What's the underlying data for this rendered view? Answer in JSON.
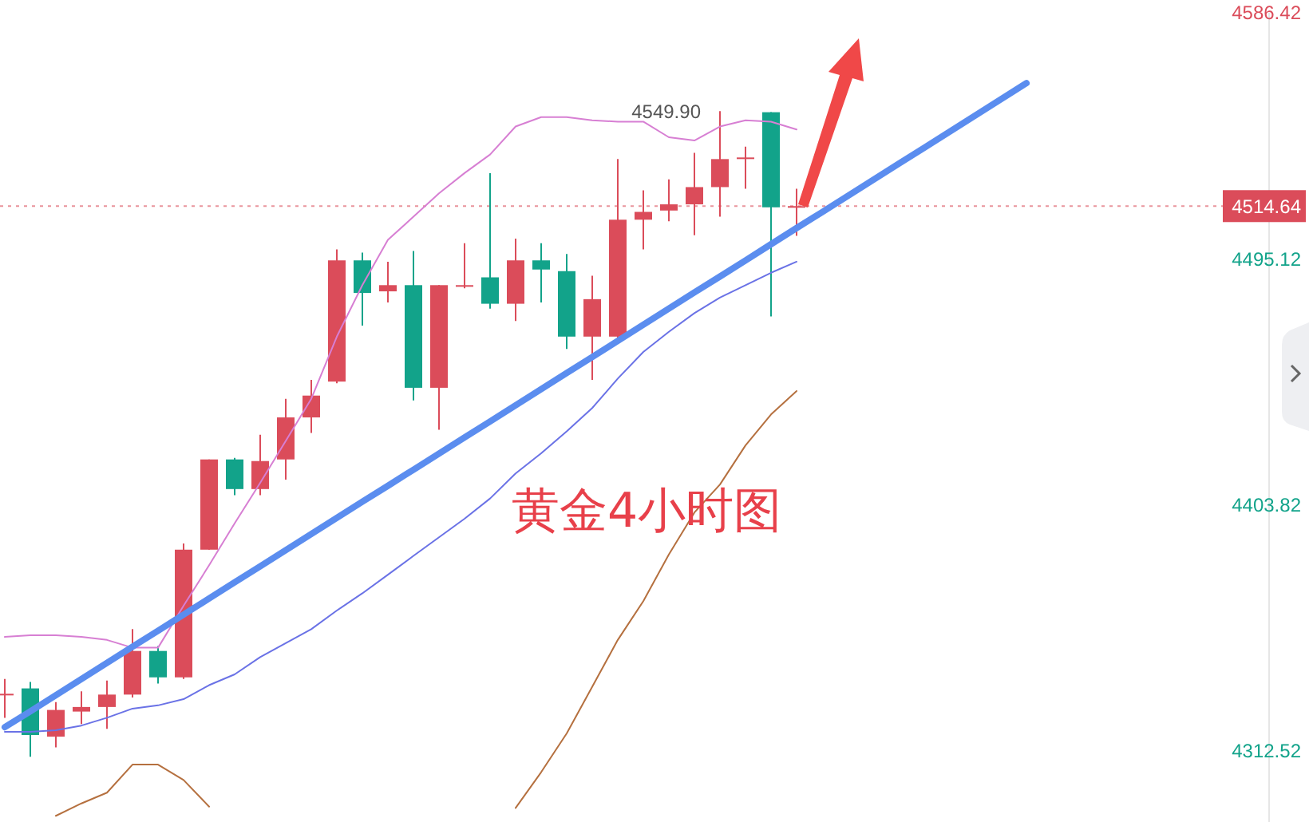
{
  "chart_data": {
    "type": "candlestick",
    "categories": [
      null,
      null,
      null,
      null,
      null,
      null,
      null,
      null,
      null,
      null,
      null,
      null,
      null,
      null,
      null,
      null,
      null,
      null,
      null,
      null,
      null,
      null,
      null,
      null,
      null,
      null,
      null,
      null,
      null,
      null,
      null,
      null,
      null,
      null,
      null,
      null,
      null,
      null,
      null,
      null,
      null
    ],
    "ohlc": [
      [
        4333.3,
        4339.1,
        4324.7,
        4333.6
      ],
      [
        4335.6,
        4338.0,
        4310.2,
        4318.3
      ],
      [
        4317.7,
        4330.5,
        4313.7,
        4327.6
      ],
      [
        4327.0,
        4334.5,
        4322.4,
        4328.7
      ],
      [
        4328.7,
        4338.5,
        4320.6,
        4333.3
      ],
      [
        4333.3,
        4357.6,
        4332.2,
        4349.5
      ],
      [
        4349.5,
        4351.3,
        4337.4,
        4339.7
      ],
      [
        4339.7,
        4389.4,
        4339.1,
        4387.1
      ],
      [
        4387.1,
        4420.6,
        4387.1,
        4420.6
      ],
      [
        4420.6,
        4421.2,
        4407.3,
        4409.6
      ],
      [
        4409.6,
        4429.8,
        4407.3,
        4420.0
      ],
      [
        4420.6,
        4443.1,
        4413.1,
        4436.2
      ],
      [
        4436.2,
        4450.1,
        4430.4,
        4444.3
      ],
      [
        4449.5,
        4498.6,
        4448.9,
        4494.5
      ],
      [
        4494.5,
        4497.4,
        4470.3,
        4482.4
      ],
      [
        4483.0,
        4494.0,
        4478.9,
        4485.3
      ],
      [
        4485.3,
        4498.0,
        4442.5,
        4447.2
      ],
      [
        4447.2,
        4485.3,
        4431.6,
        4485.3
      ],
      [
        4484.8,
        4500.9,
        4484.1,
        4485.3
      ],
      [
        4488.2,
        4526.9,
        4476.6,
        4478.4
      ],
      [
        4478.4,
        4502.6,
        4472.0,
        4494.5
      ],
      [
        4494.5,
        4500.9,
        4478.9,
        4491.1
      ],
      [
        4490.5,
        4496.9,
        4461.6,
        4466.2
      ],
      [
        4466.2,
        4488.8,
        4450.1,
        4480.1
      ],
      [
        4466.2,
        4532.1,
        4465.7,
        4509.6
      ],
      [
        4509.6,
        4520.5,
        4498.6,
        4512.5
      ],
      [
        4513.0,
        4524.6,
        4509.0,
        4515.3
      ],
      [
        4515.3,
        4534.4,
        4503.8,
        4521.7
      ],
      [
        4521.7,
        4549.9,
        4510.7,
        4532.1
      ],
      [
        4532.4,
        4536.7,
        4521.1,
        4532.7
      ],
      [
        4549.5,
        4549.5,
        4473.7,
        4514.2
      ],
      [
        4514.2,
        4521.1,
        4503.6,
        4514.64
      ],
      null,
      null,
      null,
      null,
      null,
      null,
      null,
      null,
      null
    ],
    "colors": [
      "#db4c5a",
      "#12a38a",
      "#db4c5a",
      "#db4c5a",
      "#db4c5a",
      "#db4c5a",
      "#12a38a",
      "#db4c5a",
      "#db4c5a",
      "#12a38a",
      "#db4c5a",
      "#db4c5a",
      "#db4c5a",
      "#db4c5a",
      "#12a38a",
      "#db4c5a",
      "#12a38a",
      "#db4c5a",
      "#db4c5a",
      "#12a38a",
      "#db4c5a",
      "#12a38a",
      "#12a38a",
      "#db4c5a",
      "#db4c5a",
      "#db4c5a",
      "#db4c5a",
      "#db4c5a",
      "#db4c5a",
      "#db4c5a",
      "#12a38a",
      "#db4c5a",
      null,
      null,
      null,
      null,
      null,
      null,
      null,
      null,
      null
    ],
    "series": [
      {
        "type": "line",
        "color": "#d77fd3",
        "values": [
          4354.7,
          4355.3,
          4355.3,
          4354.7,
          4353.6,
          4350.7,
          4350.7,
          4366.3,
          4381.3,
          4396.9,
          4411.9,
          4427.5,
          4443.1,
          4466.2,
          4485.3,
          4502.1,
          4510.7,
          4519.4,
          4526.9,
          4533.8,
          4544.2,
          4547.7,
          4547.7,
          4546.5,
          4546.0,
          4546.0,
          4540.2,
          4539.0,
          4544.2,
          4546.5,
          4546.0,
          4543.1,
          null,
          null,
          null,
          null,
          null,
          null,
          null,
          null,
          null
        ]
      },
      {
        "type": "line",
        "color": "#6a72e6",
        "values": [
          4319.5,
          4319.5,
          4320.1,
          4321.8,
          4324.7,
          4328.1,
          4329.3,
          4331.6,
          4336.8,
          4340.8,
          4347.2,
          4352.4,
          4357.6,
          4364.5,
          4370.9,
          4377.8,
          4384.8,
          4391.7,
          4398.6,
          4406.1,
          4415.4,
          4422.9,
          4431.0,
          4439.7,
          4450.6,
          4460.5,
          4468.0,
          4474.9,
          4480.7,
          4485.3,
          4489.9,
          4494.0,
          null,
          null,
          null,
          null,
          null,
          null,
          null,
          null,
          null
        ]
      },
      {
        "type": "line",
        "color": "#b5703f",
        "values": [
          null,
          null,
          4288.3,
          4292.9,
          4296.9,
          4307.3,
          4307.3,
          4301.6,
          4291.7,
          null,
          null,
          null,
          null,
          null,
          null,
          null,
          null,
          null,
          null,
          null,
          4291.2,
          4304.5,
          4318.9,
          4336.2,
          4353.6,
          4368.0,
          4385.3,
          4400.9,
          4411.3,
          4425.8,
          4437.3,
          4446.0,
          null,
          null,
          null,
          null,
          null,
          null,
          null,
          null,
          null
        ]
      },
      {
        "type": "line",
        "color": "#5b8def",
        "values": [
          4321.2,
          4327.1,
          4333.1,
          4339.1,
          4345.1,
          4351.1,
          4357.0,
          4363.0,
          4369.0,
          4375.0,
          4380.9,
          4386.9,
          4392.9,
          4398.9,
          4404.9,
          4410.8,
          4416.8,
          4422.8,
          4428.8,
          4434.7,
          4440.7,
          4446.7,
          4452.7,
          4458.6,
          4464.6,
          4470.6,
          4476.6,
          4482.6,
          4488.5,
          4494.5,
          4500.5,
          4506.5,
          4512.4,
          4518.4,
          4524.4,
          4530.4,
          4536.3,
          4542.3,
          4548.3,
          4554.3,
          4560.3
        ]
      }
    ],
    "ylim": [
      4286,
      4586.42
    ],
    "yticks": [
      4312.52,
      4403.82,
      4495.12,
      4586.42
    ],
    "tick_labels": "y",
    "ref_lines": [
      {
        "axis": "y",
        "value": 4514.64,
        "label": "4514.64",
        "color": "#db4c5a",
        "line_style": "dotted"
      }
    ],
    "annotations": [
      "4549.90",
      "黄金4小时图"
    ]
  }
}
